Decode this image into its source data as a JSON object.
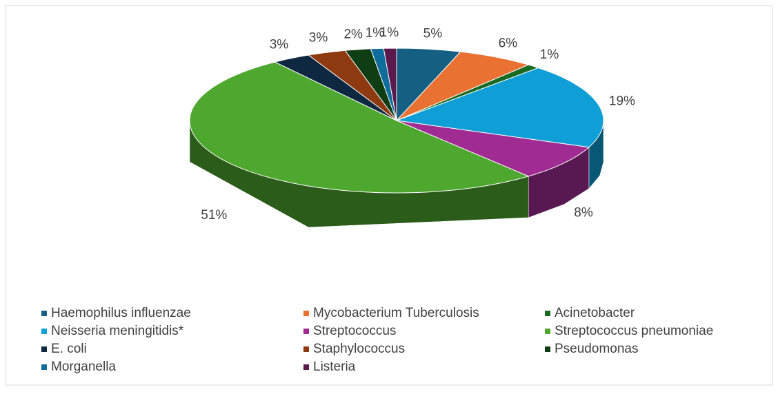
{
  "chart_data": {
    "type": "pie3d",
    "categories": [
      "Haemophilus influenzae",
      "Mycobacterium Tuberculosis",
      "Acinetobacter",
      "Neisseria meningitidis*",
      "Streptococcus",
      "Streptococcus pneumoniae",
      "E. coli",
      "Staphylococcus",
      "Pseudomonas",
      "Morganella",
      "Listeria"
    ],
    "values": [
      5,
      6,
      1,
      19,
      8,
      51,
      3,
      3,
      2,
      1,
      1
    ],
    "value_labels": [
      "5%",
      "6%",
      "1%",
      "19%",
      "8%",
      "51%",
      "3%",
      "3%",
      "2%",
      "1%",
      "1%"
    ],
    "colors": [
      "#156082",
      "#e97132",
      "#196b24",
      "#0f9ed5",
      "#a02b93",
      "#4ea72e",
      "#0e2841",
      "#8e3a10",
      "#0f3e15",
      "#0e6d9b",
      "#5a1a4e"
    ],
    "legend": "bottom"
  }
}
